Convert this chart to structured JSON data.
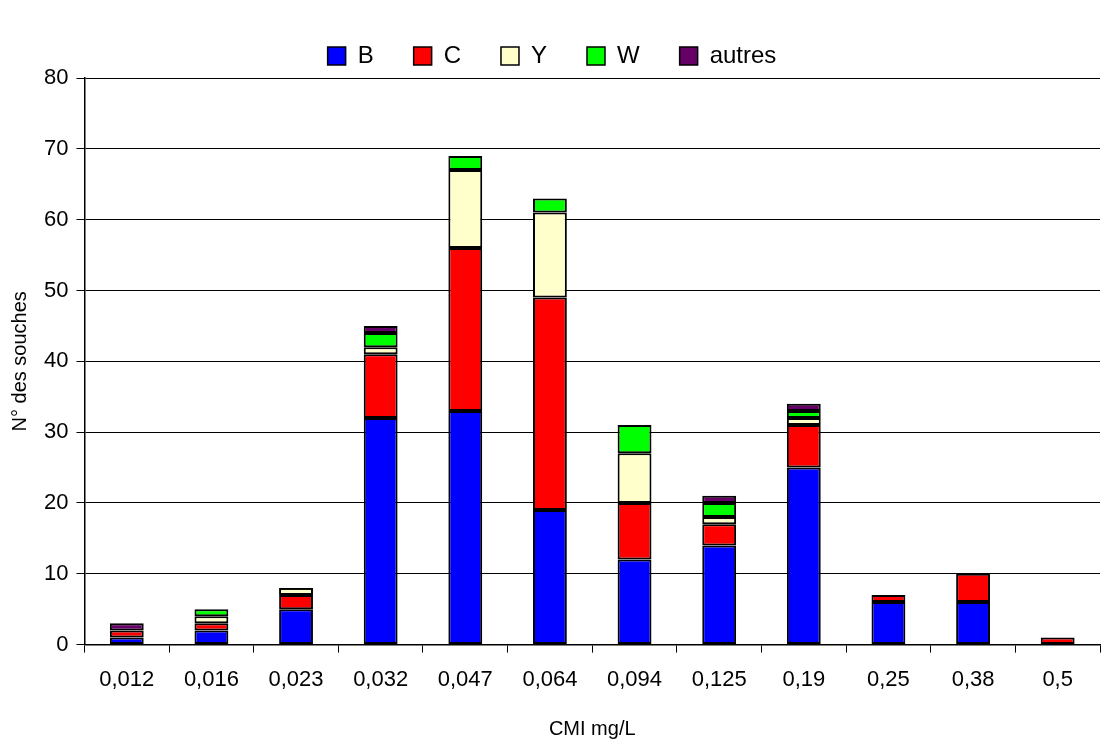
{
  "chart_data": {
    "type": "bar",
    "stacked": true,
    "xlabel": "CMI mg/L",
    "ylabel": "N° des souches",
    "categories": [
      "0,012",
      "0,016",
      "0,023",
      "0,032",
      "0,047",
      "0,064",
      "0,094",
      "0,125",
      "0,19",
      "0,25",
      "0,38",
      "0,5"
    ],
    "series": [
      {
        "name": "B",
        "color": "#0000ff",
        "values": [
          1,
          2,
          5,
          32,
          33,
          19,
          12,
          14,
          25,
          6,
          6,
          0
        ]
      },
      {
        "name": "C",
        "color": "#ff0000",
        "values": [
          1,
          1,
          2,
          9,
          23,
          30,
          8,
          3,
          6,
          1,
          4,
          1
        ]
      },
      {
        "name": "Y",
        "color": "#ffffcc",
        "values": [
          0,
          1,
          1,
          1,
          11,
          12,
          7,
          1,
          1,
          0,
          0,
          0
        ]
      },
      {
        "name": "W",
        "color": "#00ff00",
        "values": [
          0,
          1,
          0,
          2,
          2,
          2,
          4,
          2,
          1,
          0,
          0,
          0
        ]
      },
      {
        "name": "autres",
        "color": "#660066",
        "values": [
          1,
          0,
          0,
          1,
          0,
          0,
          0,
          1,
          1,
          0,
          0,
          0
        ]
      }
    ],
    "ylim": [
      0,
      80
    ],
    "yticks": [
      0,
      10,
      20,
      30,
      40,
      50,
      60,
      70,
      80
    ],
    "grid": "y",
    "legend": "top"
  }
}
